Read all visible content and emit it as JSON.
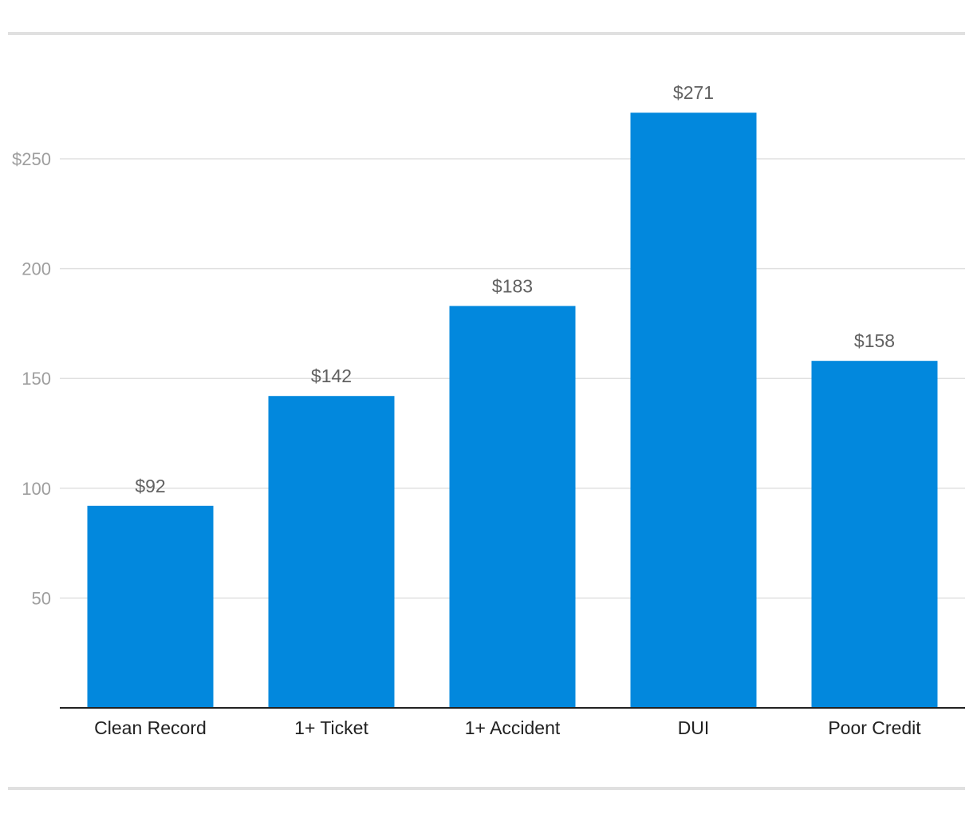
{
  "chart_data": {
    "type": "bar",
    "categories": [
      "Clean Record",
      "1+ Ticket",
      "1+ Accident",
      "DUI",
      "Poor Credit"
    ],
    "values": [
      92,
      142,
      183,
      271,
      158
    ],
    "value_labels": [
      "$92",
      "$142",
      "$183",
      "$271",
      "$158"
    ],
    "ytick_values": [
      50,
      100,
      150,
      200,
      250
    ],
    "ytick_labels": [
      "50",
      "100",
      "150",
      "200",
      "$250"
    ],
    "ylim": [
      0,
      250
    ],
    "grid": true,
    "legend": "none",
    "colors": {
      "bar": "#0288dd",
      "grid": "#e0e0e0",
      "axis": "#212121",
      "rule": "#e0e0e0"
    }
  }
}
